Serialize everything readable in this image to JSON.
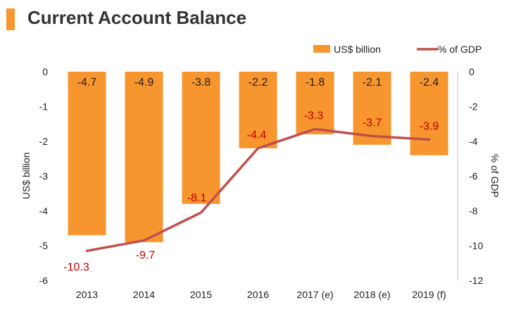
{
  "title": "Current Account Balance",
  "colors": {
    "bar": "#f7952f",
    "line": "#c0504d",
    "line_label": "#c00000",
    "text": "#222222",
    "axis": "#bfbfbf",
    "title_accent": "#f7952f"
  },
  "chart_data": {
    "type": "bar",
    "categories": [
      "2013",
      "2014",
      "2015",
      "2016",
      "2017 (e)",
      "2018 (e)",
      "2019 (f)"
    ],
    "series": [
      {
        "name": "US$ billion",
        "type": "bar",
        "axis": "left",
        "values": [
          -4.7,
          -4.9,
          -3.8,
          -2.2,
          -1.8,
          -2.1,
          -2.4
        ],
        "labels": [
          "-4.7",
          "-4.9",
          "-3.8",
          "-2.2",
          "-1.8",
          "-2.1",
          "-2.4"
        ]
      },
      {
        "name": "% of GDP",
        "type": "line",
        "axis": "right",
        "values": [
          -10.3,
          -9.7,
          -8.1,
          -4.4,
          -3.3,
          -3.7,
          -3.9
        ],
        "labels": [
          "-10.3",
          "-9.7",
          "-8.1",
          "-4.4",
          "-3.3",
          "-3.7",
          "-3.9"
        ]
      }
    ],
    "ylabel": "US$ billion",
    "y2label": "% of GDP",
    "ylim": [
      -6,
      0
    ],
    "y2lim": [
      -12,
      0
    ],
    "yticks": [
      "0",
      "-1",
      "-2",
      "-3",
      "-4",
      "-5",
      "-6"
    ],
    "y2ticks": [
      "0",
      "-2",
      "-4",
      "-6",
      "-8",
      "-10",
      "-12"
    ],
    "legend": "top-right",
    "grid": false
  }
}
